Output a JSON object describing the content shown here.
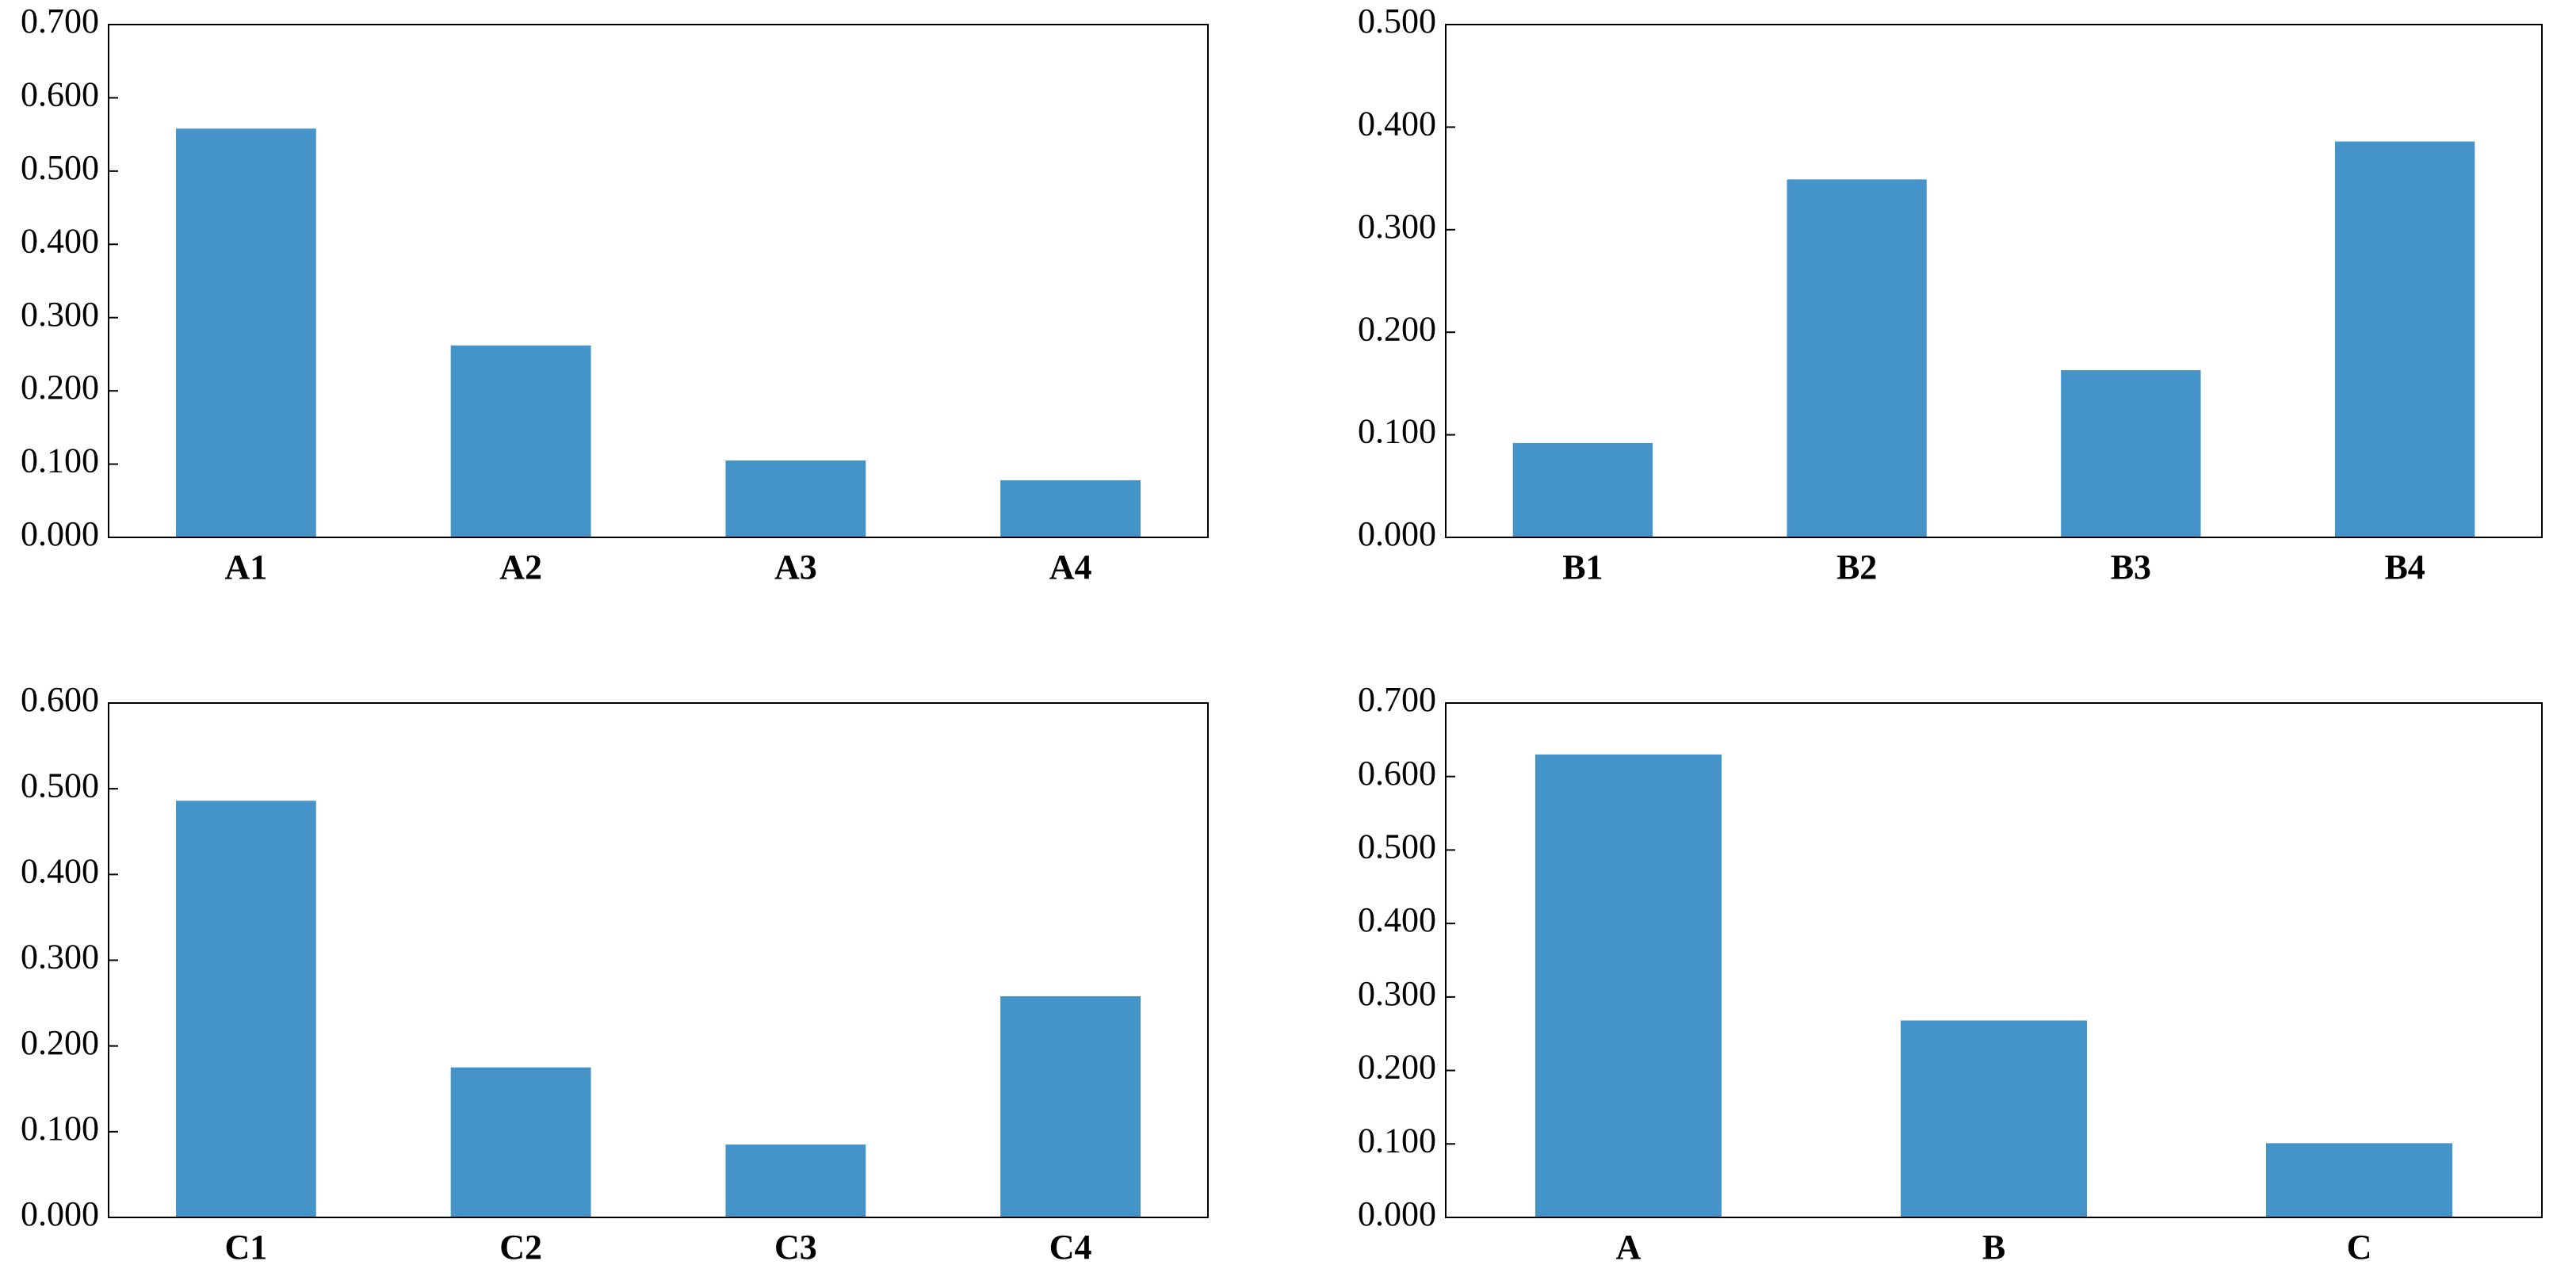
{
  "chart_data": [
    {
      "type": "bar",
      "categories": [
        "A1",
        "A2",
        "A3",
        "A4"
      ],
      "values": [
        0.558,
        0.262,
        0.105,
        0.078
      ],
      "color": "#4493c9",
      "ylim": [
        0,
        0.7
      ],
      "yticks": [
        {
          "value": 0,
          "label": "0.000"
        },
        {
          "value": 0.1,
          "label": "0.100"
        },
        {
          "value": 0.2,
          "label": "0.200"
        },
        {
          "value": 0.3,
          "label": "0.300"
        },
        {
          "value": 0.4,
          "label": "0.400"
        },
        {
          "value": 0.5,
          "label": "0.500"
        },
        {
          "value": 0.6,
          "label": "0.600"
        },
        {
          "value": 0.7,
          "label": "0.700"
        }
      ]
    },
    {
      "type": "bar",
      "categories": [
        "B1",
        "B2",
        "B3",
        "B4"
      ],
      "values": [
        0.092,
        0.349,
        0.163,
        0.386
      ],
      "color": "#4493c9",
      "ylim": [
        0,
        0.5
      ],
      "yticks": [
        {
          "value": 0,
          "label": "0.000"
        },
        {
          "value": 0.1,
          "label": "0.100"
        },
        {
          "value": 0.2,
          "label": "0.200"
        },
        {
          "value": 0.3,
          "label": "0.300"
        },
        {
          "value": 0.4,
          "label": "0.400"
        },
        {
          "value": 0.5,
          "label": "0.500"
        }
      ]
    },
    {
      "type": "bar",
      "categories": [
        "C1",
        "C2",
        "C3",
        "C4"
      ],
      "values": [
        0.486,
        0.175,
        0.085,
        0.258
      ],
      "color": "#4493c9",
      "ylim": [
        0,
        0.6
      ],
      "yticks": [
        {
          "value": 0,
          "label": "0.000"
        },
        {
          "value": 0.1,
          "label": "0.100"
        },
        {
          "value": 0.2,
          "label": "0.200"
        },
        {
          "value": 0.3,
          "label": "0.300"
        },
        {
          "value": 0.4,
          "label": "0.400"
        },
        {
          "value": 0.5,
          "label": "0.500"
        },
        {
          "value": 0.6,
          "label": "0.600"
        }
      ]
    },
    {
      "type": "bar",
      "categories": [
        "A",
        "B",
        "C"
      ],
      "values": [
        0.63,
        0.268,
        0.101
      ],
      "color": "#4493c9",
      "ylim": [
        0,
        0.7
      ],
      "yticks": [
        {
          "value": 0,
          "label": "0.000"
        },
        {
          "value": 0.1,
          "label": "0.100"
        },
        {
          "value": 0.2,
          "label": "0.200"
        },
        {
          "value": 0.3,
          "label": "0.300"
        },
        {
          "value": 0.4,
          "label": "0.400"
        },
        {
          "value": 0.5,
          "label": "0.500"
        },
        {
          "value": 0.6,
          "label": "0.600"
        },
        {
          "value": 0.7,
          "label": "0.700"
        }
      ]
    }
  ]
}
